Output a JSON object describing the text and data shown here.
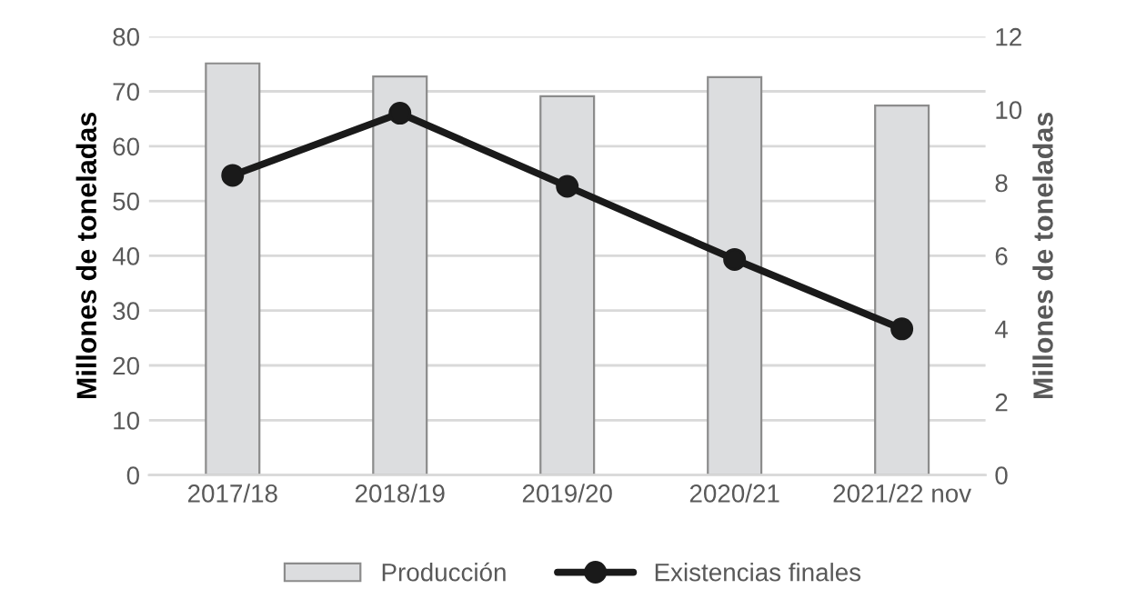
{
  "chart_data": {
    "type": "bar",
    "categories": [
      "2017/18",
      "2018/19",
      "2019/20",
      "2020/21",
      "2021/22 nov"
    ],
    "series": [
      {
        "name": "Producción",
        "color": "#dcdddf",
        "values": [
          75.1,
          72.7,
          69.1,
          72.6,
          67.4
        ]
      },
      {
        "name": "Existencias finales",
        "type": "line",
        "axis": "y2",
        "color": "#1a1a1a",
        "values": [
          8.2,
          9.9,
          7.9,
          5.9,
          4.0
        ]
      }
    ],
    "ylabel": "Millones de toneladas",
    "y2label": "Millones de toneladas",
    "ylim": [
      0,
      80
    ],
    "yticks": [
      0,
      10,
      20,
      30,
      40,
      50,
      60,
      70,
      80
    ],
    "y2lim": [
      0,
      12
    ],
    "y2ticks": [
      0,
      2,
      4,
      6,
      8,
      10,
      12
    ],
    "grid": "y",
    "legend": "bottom",
    "marker": "circle",
    "line_style": "solid"
  }
}
